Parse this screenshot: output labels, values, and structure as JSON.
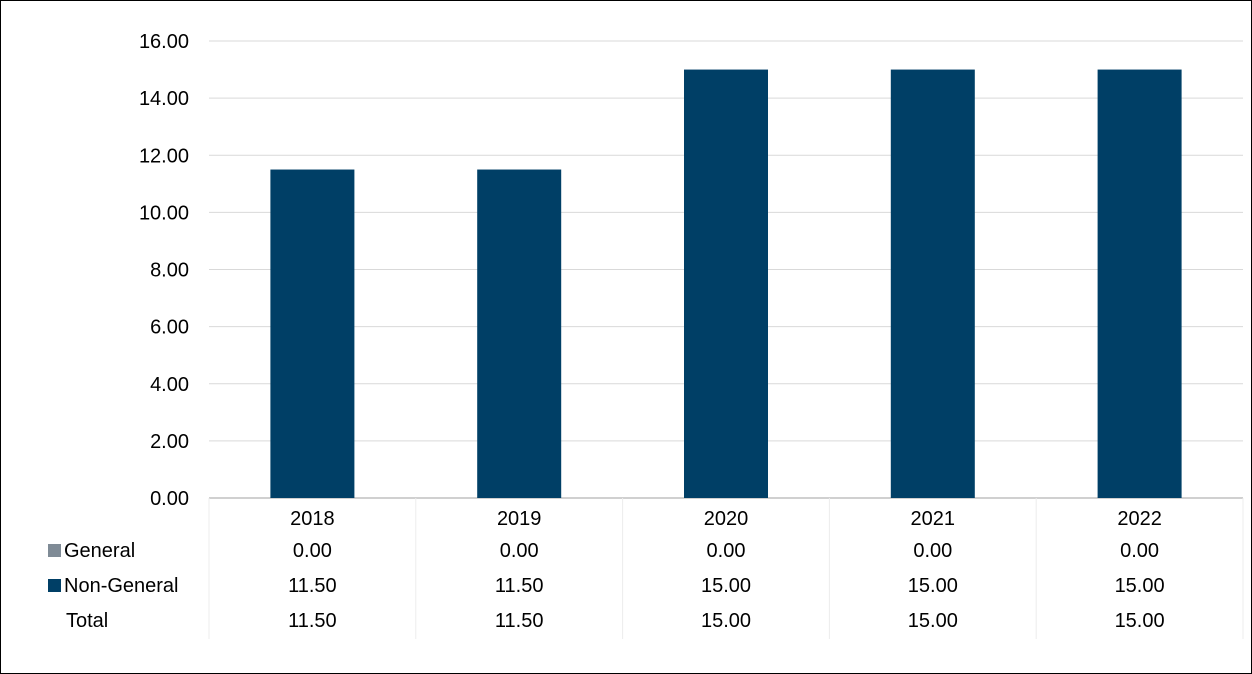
{
  "chart_data": {
    "type": "bar",
    "title": "",
    "xlabel": "",
    "ylabel": "",
    "ylim": [
      0,
      16
    ],
    "yticks": [
      "0.00",
      "2.00",
      "4.00",
      "6.00",
      "8.00",
      "10.00",
      "12.00",
      "14.00",
      "16.00"
    ],
    "grid": true,
    "legend": "data-table-below",
    "categories": [
      "2018",
      "2019",
      "2020",
      "2021",
      "2022"
    ],
    "series": [
      {
        "name": "General",
        "color": "#7f8b96",
        "values": [
          0,
          0,
          0,
          0,
          0
        ]
      },
      {
        "name": "Non-General",
        "color": "#003f66",
        "values": [
          11.5,
          11.5,
          15,
          15,
          15
        ]
      }
    ],
    "table": {
      "rows": [
        {
          "label": "General",
          "legend_key": true,
          "color": "#7f8b96",
          "cells": [
            "0.00",
            "0.00",
            "0.00",
            "0.00",
            "0.00"
          ]
        },
        {
          "label": "Non-General",
          "legend_key": true,
          "color": "#003f66",
          "cells": [
            "11.50",
            "11.50",
            "15.00",
            "15.00",
            "15.00"
          ]
        },
        {
          "label": "Total",
          "legend_key": false,
          "color": "",
          "cells": [
            "11.50",
            "11.50",
            "15.00",
            "15.00",
            "15.00"
          ]
        }
      ]
    }
  }
}
